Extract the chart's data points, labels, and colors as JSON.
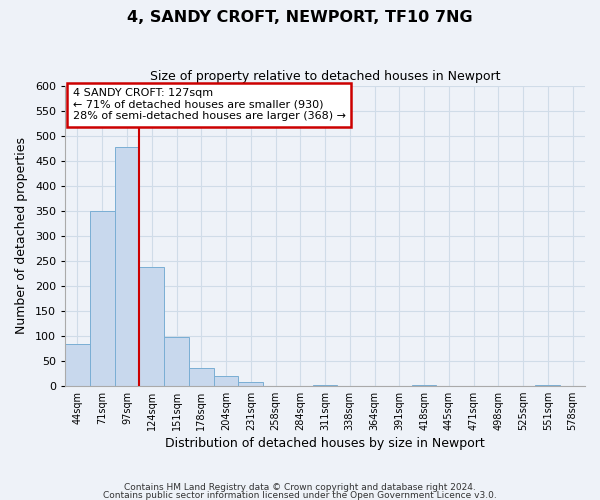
{
  "title": "4, SANDY CROFT, NEWPORT, TF10 7NG",
  "subtitle": "Size of property relative to detached houses in Newport",
  "xlabel": "Distribution of detached houses by size in Newport",
  "ylabel": "Number of detached properties",
  "bar_labels": [
    "44sqm",
    "71sqm",
    "97sqm",
    "124sqm",
    "151sqm",
    "178sqm",
    "204sqm",
    "231sqm",
    "258sqm",
    "284sqm",
    "311sqm",
    "338sqm",
    "364sqm",
    "391sqm",
    "418sqm",
    "445sqm",
    "471sqm",
    "498sqm",
    "525sqm",
    "551sqm",
    "578sqm"
  ],
  "bar_values": [
    83,
    350,
    478,
    237,
    97,
    35,
    19,
    7,
    0,
    0,
    2,
    0,
    0,
    0,
    1,
    0,
    0,
    0,
    0,
    1,
    0
  ],
  "bar_color": "#c8d8ed",
  "bar_edge_color": "#7aaed4",
  "grid_color": "#d0dce8",
  "background_color": "#eef2f8",
  "property_line_x": 3,
  "property_line_color": "#cc0000",
  "annotation_title": "4 SANDY CROFT: 127sqm",
  "annotation_line1": "← 71% of detached houses are smaller (930)",
  "annotation_line2": "28% of semi-detached houses are larger (368) →",
  "annotation_box_edge_color": "#cc0000",
  "annotation_box_face_color": "#ffffff",
  "ylim": [
    0,
    600
  ],
  "yticks": [
    0,
    50,
    100,
    150,
    200,
    250,
    300,
    350,
    400,
    450,
    500,
    550,
    600
  ],
  "footer1": "Contains HM Land Registry data © Crown copyright and database right 2024.",
  "footer2": "Contains public sector information licensed under the Open Government Licence v3.0."
}
